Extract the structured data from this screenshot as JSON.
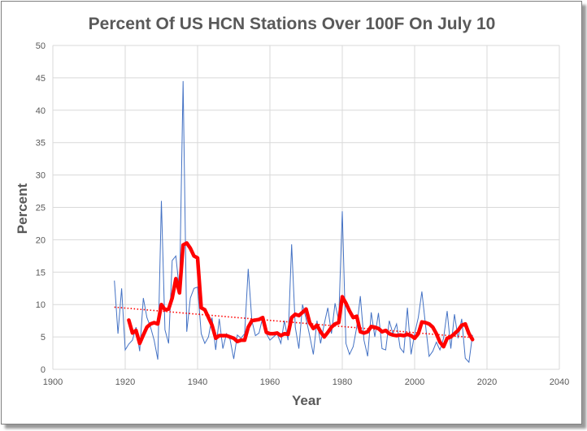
{
  "chart_data": {
    "type": "line",
    "title": "Percent Of US HCN Stations Over 100F On July 10",
    "xlabel": "Year",
    "ylabel": "Percent",
    "xlim": [
      1900,
      2040
    ],
    "ylim": [
      0,
      50
    ],
    "x_ticks": [
      "1900",
      "1920",
      "1940",
      "1960",
      "1980",
      "2000",
      "2020",
      "2040"
    ],
    "y_ticks": [
      "0",
      "5",
      "10",
      "15",
      "20",
      "25",
      "30",
      "35",
      "40",
      "45",
      "50"
    ],
    "grid": true,
    "legend": "none",
    "series": [
      {
        "style": "thin-line",
        "color": "#4472c4",
        "x": [
          1917,
          1918,
          1919,
          1920,
          1921,
          1922,
          1923,
          1924,
          1925,
          1926,
          1927,
          1928,
          1929,
          1930,
          1931,
          1932,
          1933,
          1934,
          1935,
          1936,
          1937,
          1938,
          1939,
          1940,
          1941,
          1942,
          1943,
          1944,
          1945,
          1946,
          1947,
          1948,
          1949,
          1950,
          1951,
          1952,
          1953,
          1954,
          1955,
          1956,
          1957,
          1958,
          1959,
          1960,
          1961,
          1962,
          1963,
          1964,
          1965,
          1966,
          1967,
          1968,
          1969,
          1970,
          1971,
          1972,
          1973,
          1974,
          1975,
          1976,
          1977,
          1978,
          1979,
          1980,
          1981,
          1982,
          1983,
          1984,
          1985,
          1986,
          1987,
          1988,
          1989,
          1990,
          1991,
          1992,
          1993,
          1994,
          1995,
          1996,
          1997,
          1998,
          1999,
          2000,
          2001,
          2002,
          2003,
          2004,
          2005,
          2006,
          2007,
          2008,
          2009,
          2010,
          2011,
          2012,
          2013,
          2014,
          2015,
          2016
        ],
        "y": [
          13.7,
          5.5,
          12.5,
          3,
          3.9,
          4.5,
          6.5,
          2.8,
          11,
          8,
          6.5,
          4.5,
          1.5,
          26,
          6.1,
          4,
          16.8,
          17.5,
          12,
          44.5,
          5.8,
          11,
          12.5,
          12.7,
          5.5,
          4,
          5,
          8,
          3,
          7.8,
          3.2,
          5.5,
          4.6,
          1.6,
          5.3,
          4.8,
          5.5,
          15.5,
          7.5,
          5.2,
          5.6,
          8,
          5.5,
          4.5,
          5,
          5.5,
          4,
          7.5,
          4.5,
          19.3,
          6.5,
          3.2,
          10,
          7.8,
          5.2,
          2.3,
          7.5,
          4,
          7,
          9.5,
          5.5,
          10.2,
          7.5,
          24.4,
          4,
          2.3,
          3.5,
          6.5,
          11.3,
          4.5,
          2,
          8.8,
          5,
          8.7,
          3.2,
          3,
          7.5,
          5.5,
          7,
          3.3,
          2.6,
          9.5,
          2.3,
          5.5,
          8,
          12,
          6.8,
          2,
          2.8,
          4.2,
          3,
          4.8,
          9,
          3.2,
          8.5,
          4.8,
          7.8,
          1.7,
          1.1,
          5.3
        ]
      },
      {
        "style": "thick-line",
        "color": "#ff0000",
        "x": [
          1921,
          1922,
          1923,
          1924,
          1925,
          1926,
          1927,
          1928,
          1929,
          1930,
          1931,
          1932,
          1933,
          1934,
          1935,
          1936,
          1937,
          1938,
          1939,
          1940,
          1941,
          1942,
          1943,
          1944,
          1945,
          1946,
          1947,
          1948,
          1949,
          1950,
          1951,
          1952,
          1953,
          1954,
          1955,
          1956,
          1957,
          1958,
          1959,
          1960,
          1961,
          1962,
          1963,
          1964,
          1965,
          1966,
          1967,
          1968,
          1969,
          1970,
          1971,
          1972,
          1973,
          1974,
          1975,
          1976,
          1977,
          1978,
          1979,
          1980,
          1981,
          1982,
          1983,
          1984,
          1985,
          1986,
          1987,
          1988,
          1989,
          1990,
          1991,
          1992,
          1993,
          1994,
          1995,
          1996,
          1997,
          1998,
          1999,
          2000,
          2001,
          2002,
          2003,
          2004,
          2005,
          2006,
          2007,
          2008,
          2009,
          2010,
          2011,
          2012,
          2013,
          2014,
          2015,
          2016
        ],
        "y": [
          7.6,
          5.6,
          6,
          4,
          5.3,
          6.5,
          7,
          7.2,
          7,
          10,
          9.2,
          9.3,
          11,
          14,
          11.8,
          19.2,
          19.5,
          18.7,
          17.5,
          17.2,
          9.5,
          9.2,
          8,
          6.8,
          4.8,
          5.2,
          5.2,
          5.2,
          5,
          4.8,
          4.3,
          4.5,
          4.5,
          6.5,
          7.5,
          7.6,
          7.7,
          8,
          5.7,
          5.5,
          5.5,
          5.6,
          5.2,
          5.5,
          5.4,
          8,
          8.5,
          8.3,
          8.8,
          9.3,
          7.2,
          6.3,
          6.8,
          5.8,
          5,
          5.7,
          6.5,
          7,
          7.2,
          11.2,
          10.2,
          9,
          8,
          8.2,
          5.8,
          5.6,
          5.8,
          6.6,
          6.5,
          6.3,
          5.8,
          6,
          5.5,
          5.3,
          5.2,
          5.3,
          5.2,
          5.4,
          5.2,
          4.8,
          5.5,
          7.3,
          7.2,
          7,
          6.5,
          5.5,
          4.2,
          3.5,
          4.8,
          5,
          5.5,
          6,
          6.8,
          7,
          5.5,
          4.6
        ]
      },
      {
        "style": "dotted-trend",
        "color": "#ff0000",
        "x": [
          1917,
          2016
        ],
        "y": [
          9.6,
          4.9
        ]
      }
    ]
  }
}
